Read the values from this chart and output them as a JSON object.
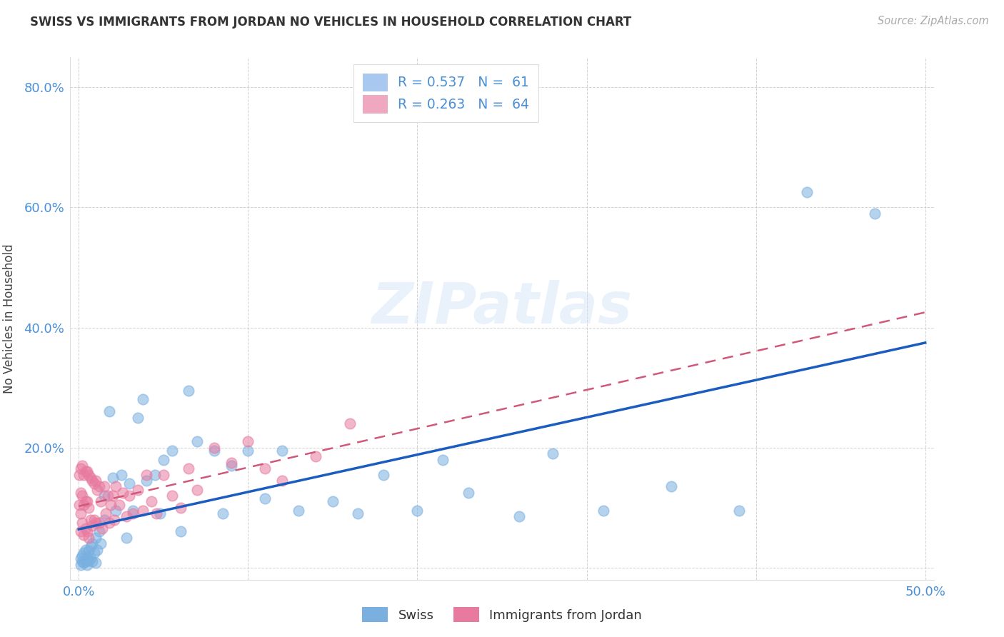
{
  "title": "SWISS VS IMMIGRANTS FROM JORDAN NO VEHICLES IN HOUSEHOLD CORRELATION CHART",
  "source": "Source: ZipAtlas.com",
  "ylabel": "No Vehicles in Household",
  "xlim": [
    -0.005,
    0.505
  ],
  "ylim": [
    -0.02,
    0.85
  ],
  "xticks": [
    0.0,
    0.1,
    0.2,
    0.3,
    0.4,
    0.5
  ],
  "yticks": [
    0.0,
    0.2,
    0.4,
    0.6,
    0.8
  ],
  "ytick_labels": [
    "",
    "20.0%",
    "40.0%",
    "60.0%",
    "80.0%"
  ],
  "xtick_labels": [
    "0.0%",
    "",
    "",
    "",
    "",
    "50.0%"
  ],
  "legend_entries": [
    {
      "label": "R = 0.537   N =  61",
      "color": "#a8c8f0"
    },
    {
      "label": "R = 0.263   N =  64",
      "color": "#f0a8c0"
    }
  ],
  "series1_label": "Swiss",
  "series2_label": "Immigrants from Jordan",
  "series1_color": "#7ab0e0",
  "series2_color": "#e87aa0",
  "series1_line_color": "#1a5cbf",
  "series2_line_color": "#d05878",
  "watermark": "ZIPatlas",
  "swiss_x": [
    0.001,
    0.001,
    0.002,
    0.002,
    0.003,
    0.003,
    0.004,
    0.004,
    0.005,
    0.005,
    0.006,
    0.006,
    0.007,
    0.007,
    0.008,
    0.008,
    0.009,
    0.01,
    0.01,
    0.011,
    0.012,
    0.013,
    0.015,
    0.015,
    0.018,
    0.02,
    0.022,
    0.025,
    0.028,
    0.03,
    0.032,
    0.035,
    0.038,
    0.04,
    0.045,
    0.048,
    0.05,
    0.055,
    0.06,
    0.065,
    0.07,
    0.08,
    0.085,
    0.09,
    0.1,
    0.11,
    0.12,
    0.13,
    0.15,
    0.165,
    0.18,
    0.2,
    0.215,
    0.23,
    0.26,
    0.28,
    0.31,
    0.35,
    0.39,
    0.43,
    0.47
  ],
  "swiss_y": [
    0.005,
    0.015,
    0.01,
    0.02,
    0.008,
    0.025,
    0.01,
    0.03,
    0.005,
    0.018,
    0.012,
    0.028,
    0.015,
    0.035,
    0.01,
    0.04,
    0.025,
    0.008,
    0.05,
    0.03,
    0.06,
    0.04,
    0.12,
    0.08,
    0.26,
    0.15,
    0.095,
    0.155,
    0.05,
    0.14,
    0.095,
    0.25,
    0.28,
    0.145,
    0.155,
    0.09,
    0.18,
    0.195,
    0.06,
    0.295,
    0.21,
    0.195,
    0.09,
    0.17,
    0.195,
    0.115,
    0.195,
    0.095,
    0.11,
    0.09,
    0.155,
    0.095,
    0.18,
    0.125,
    0.085,
    0.19,
    0.095,
    0.135,
    0.095,
    0.625,
    0.59
  ],
  "jordan_x": [
    0.0005,
    0.0005,
    0.001,
    0.001,
    0.001,
    0.001,
    0.002,
    0.002,
    0.002,
    0.003,
    0.003,
    0.003,
    0.004,
    0.004,
    0.004,
    0.005,
    0.005,
    0.005,
    0.006,
    0.006,
    0.006,
    0.007,
    0.007,
    0.008,
    0.008,
    0.009,
    0.009,
    0.01,
    0.01,
    0.011,
    0.012,
    0.012,
    0.013,
    0.014,
    0.015,
    0.016,
    0.017,
    0.018,
    0.019,
    0.02,
    0.021,
    0.022,
    0.024,
    0.026,
    0.028,
    0.03,
    0.032,
    0.035,
    0.038,
    0.04,
    0.043,
    0.046,
    0.05,
    0.055,
    0.06,
    0.065,
    0.07,
    0.08,
    0.09,
    0.1,
    0.11,
    0.12,
    0.14,
    0.16
  ],
  "jordan_y": [
    0.155,
    0.105,
    0.165,
    0.125,
    0.09,
    0.06,
    0.17,
    0.12,
    0.075,
    0.155,
    0.105,
    0.055,
    0.16,
    0.11,
    0.065,
    0.16,
    0.11,
    0.06,
    0.155,
    0.1,
    0.05,
    0.15,
    0.08,
    0.145,
    0.07,
    0.14,
    0.08,
    0.145,
    0.075,
    0.13,
    0.135,
    0.075,
    0.11,
    0.065,
    0.135,
    0.09,
    0.12,
    0.075,
    0.105,
    0.12,
    0.08,
    0.135,
    0.105,
    0.125,
    0.085,
    0.12,
    0.09,
    0.13,
    0.095,
    0.155,
    0.11,
    0.09,
    0.155,
    0.12,
    0.1,
    0.165,
    0.13,
    0.2,
    0.175,
    0.21,
    0.165,
    0.145,
    0.185,
    0.24
  ]
}
